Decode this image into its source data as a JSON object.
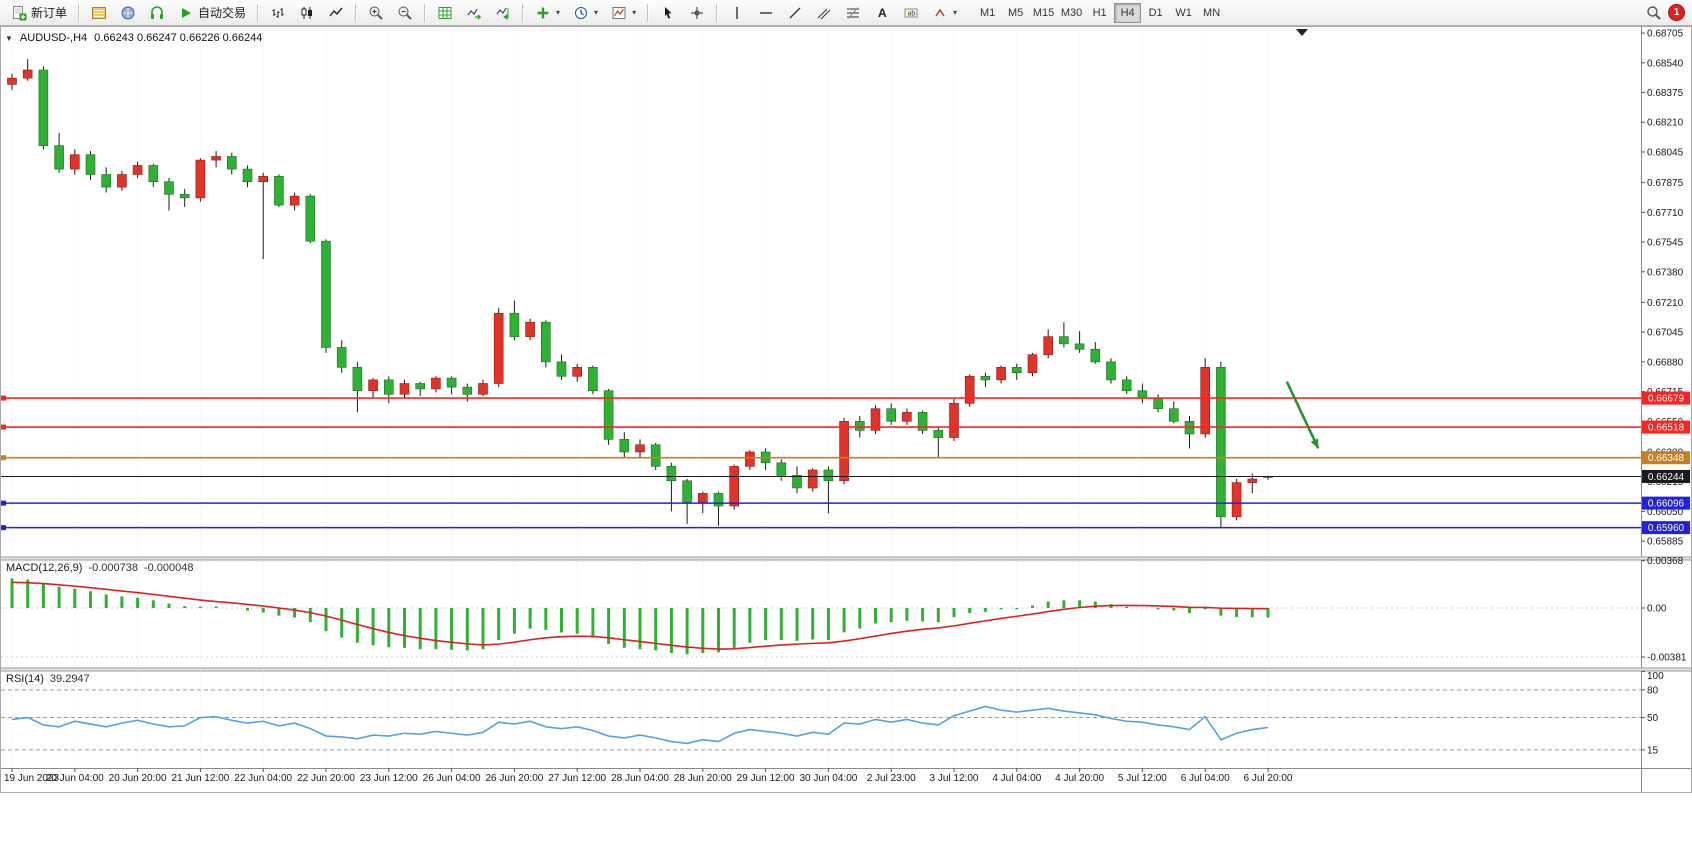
{
  "toolbar": {
    "new_order_label": "新订单",
    "autotrading_label": "自动交易",
    "timeframes": [
      "M1",
      "M5",
      "M15",
      "M30",
      "H1",
      "H4",
      "D1",
      "W1",
      "MN"
    ],
    "active_timeframe": "H4",
    "notification_count": "1"
  },
  "chart": {
    "symbol_period": "AUDUSD-,H4",
    "ohlc": "0.66243 0.66247 0.66226 0.66244"
  },
  "chart_data": {
    "type": "candlestick",
    "symbol": "AUDUSD-",
    "timeframe": "H4",
    "time_labels": [
      "19 Jun 2023",
      "20 Jun 04:00",
      "20 Jun 20:00",
      "21 Jun 12:00",
      "22 Jun 04:00",
      "22 Jun 20:00",
      "23 Jun 12:00",
      "26 Jun 04:00",
      "26 Jun 20:00",
      "27 Jun 12:00",
      "28 Jun 04:00",
      "28 Jun 20:00",
      "29 Jun 12:00",
      "30 Jun 04:00",
      "2 Jul 23:00",
      "3 Jul 12:00",
      "4 Jul 04:00",
      "4 Jul 20:00",
      "5 Jul 12:00",
      "6 Jul 04:00",
      "6 Jul 20:00"
    ],
    "candles_per_label": 4,
    "price_axis_ticks": [
      "0.68705",
      "0.68540",
      "0.68375",
      "0.68210",
      "0.68045",
      "0.67875",
      "0.67710",
      "0.67545",
      "0.67380",
      "0.67210",
      "0.67045",
      "0.66880",
      "0.66715",
      "0.66550",
      "0.66380",
      "0.66215",
      "0.66050",
      "0.65885"
    ],
    "candles": [
      [
        0.6842,
        0.6848,
        0.6839,
        0.68455
      ],
      [
        0.68455,
        0.6856,
        0.6844,
        0.685
      ],
      [
        0.685,
        0.6852,
        0.6806,
        0.6808
      ],
      [
        0.6808,
        0.6815,
        0.6793,
        0.6795
      ],
      [
        0.6795,
        0.6806,
        0.6792,
        0.6803
      ],
      [
        0.6803,
        0.6805,
        0.6789,
        0.6792
      ],
      [
        0.6792,
        0.6796,
        0.6782,
        0.6785
      ],
      [
        0.6785,
        0.6794,
        0.6783,
        0.6792
      ],
      [
        0.6792,
        0.6799,
        0.679,
        0.6797
      ],
      [
        0.6797,
        0.6798,
        0.6785,
        0.6788
      ],
      [
        0.6788,
        0.679,
        0.6772,
        0.6781
      ],
      [
        0.6781,
        0.6784,
        0.6774,
        0.6779
      ],
      [
        0.6779,
        0.6801,
        0.6777,
        0.68
      ],
      [
        0.68,
        0.6805,
        0.6796,
        0.6802
      ],
      [
        0.6802,
        0.6804,
        0.6792,
        0.6795
      ],
      [
        0.6795,
        0.6797,
        0.6785,
        0.6788
      ],
      [
        0.6788,
        0.6793,
        0.6745,
        0.6791
      ],
      [
        0.6791,
        0.6792,
        0.6774,
        0.6775
      ],
      [
        0.6775,
        0.6782,
        0.6772,
        0.678
      ],
      [
        0.678,
        0.6781,
        0.6754,
        0.6755
      ],
      [
        0.6755,
        0.6756,
        0.6693,
        0.6696
      ],
      [
        0.6696,
        0.67,
        0.6682,
        0.6685
      ],
      [
        0.6685,
        0.6688,
        0.666,
        0.6672
      ],
      [
        0.6672,
        0.6679,
        0.6668,
        0.6678
      ],
      [
        0.6678,
        0.668,
        0.6665,
        0.667
      ],
      [
        0.667,
        0.6678,
        0.6668,
        0.6676
      ],
      [
        0.6676,
        0.6677,
        0.6669,
        0.6673
      ],
      [
        0.6673,
        0.668,
        0.6671,
        0.6679
      ],
      [
        0.6679,
        0.668,
        0.667,
        0.6674
      ],
      [
        0.6674,
        0.6676,
        0.6666,
        0.667
      ],
      [
        0.667,
        0.6678,
        0.6669,
        0.6676
      ],
      [
        0.6676,
        0.6718,
        0.6674,
        0.6715
      ],
      [
        0.6715,
        0.6722,
        0.67,
        0.6702
      ],
      [
        0.6702,
        0.6712,
        0.67,
        0.671
      ],
      [
        0.671,
        0.6711,
        0.6685,
        0.6688
      ],
      [
        0.6688,
        0.6692,
        0.6678,
        0.668
      ],
      [
        0.668,
        0.6687,
        0.6677,
        0.6685
      ],
      [
        0.6685,
        0.6686,
        0.667,
        0.6672
      ],
      [
        0.6672,
        0.6673,
        0.6642,
        0.6645
      ],
      [
        0.6645,
        0.6649,
        0.6635,
        0.6638
      ],
      [
        0.6638,
        0.6645,
        0.6635,
        0.6642
      ],
      [
        0.6642,
        0.6643,
        0.6628,
        0.663
      ],
      [
        0.663,
        0.6632,
        0.6605,
        0.6622
      ],
      [
        0.6622,
        0.6623,
        0.6598,
        0.661
      ],
      [
        0.661,
        0.6616,
        0.6604,
        0.6615
      ],
      [
        0.6615,
        0.6616,
        0.6597,
        0.6608
      ],
      [
        0.6608,
        0.6631,
        0.6606,
        0.663
      ],
      [
        0.663,
        0.6639,
        0.6628,
        0.6638
      ],
      [
        0.6638,
        0.664,
        0.6628,
        0.6632
      ],
      [
        0.6632,
        0.6634,
        0.6622,
        0.6625
      ],
      [
        0.6625,
        0.663,
        0.6615,
        0.6618
      ],
      [
        0.6618,
        0.6629,
        0.6616,
        0.6628
      ],
      [
        0.6628,
        0.663,
        0.6604,
        0.6622
      ],
      [
        0.6622,
        0.6657,
        0.662,
        0.6655
      ],
      [
        0.6655,
        0.6658,
        0.6646,
        0.665
      ],
      [
        0.665,
        0.6664,
        0.6648,
        0.6662
      ],
      [
        0.6662,
        0.6665,
        0.6653,
        0.6655
      ],
      [
        0.6655,
        0.6662,
        0.6653,
        0.666
      ],
      [
        0.666,
        0.6661,
        0.6648,
        0.665
      ],
      [
        0.665,
        0.6652,
        0.6635,
        0.6646
      ],
      [
        0.6646,
        0.6668,
        0.6644,
        0.6665
      ],
      [
        0.6665,
        0.6681,
        0.6663,
        0.668
      ],
      [
        0.668,
        0.6682,
        0.6674,
        0.6678
      ],
      [
        0.6678,
        0.6686,
        0.6676,
        0.6685
      ],
      [
        0.6685,
        0.6687,
        0.6678,
        0.6682
      ],
      [
        0.6682,
        0.6693,
        0.668,
        0.6692
      ],
      [
        0.6692,
        0.6706,
        0.669,
        0.6702
      ],
      [
        0.6702,
        0.671,
        0.6696,
        0.6698
      ],
      [
        0.6698,
        0.6705,
        0.6693,
        0.6695
      ],
      [
        0.6695,
        0.6699,
        0.6687,
        0.6688
      ],
      [
        0.6688,
        0.669,
        0.6676,
        0.6678
      ],
      [
        0.6678,
        0.668,
        0.667,
        0.6672
      ],
      [
        0.6672,
        0.6676,
        0.6665,
        0.6668
      ],
      [
        0.6668,
        0.667,
        0.666,
        0.6662
      ],
      [
        0.6662,
        0.6666,
        0.6654,
        0.6655
      ],
      [
        0.6655,
        0.6658,
        0.664,
        0.6648
      ],
      [
        0.6648,
        0.669,
        0.6646,
        0.6685
      ],
      [
        0.6685,
        0.6688,
        0.6596,
        0.6602
      ],
      [
        0.6602,
        0.6623,
        0.66,
        0.6621
      ],
      [
        0.6621,
        0.6626,
        0.6615,
        0.6623
      ],
      [
        0.66243,
        0.66247,
        0.66226,
        0.66244
      ]
    ],
    "horizontal_lines": [
      {
        "price": 0.66679,
        "label": "0.66679",
        "color": "#ff2222",
        "type": "resistance"
      },
      {
        "price": 0.66518,
        "label": "0.66518",
        "color": "#ff2222",
        "type": "resistance"
      },
      {
        "price": 0.66348,
        "label": "0.66348",
        "color": "#c8801e",
        "type": "pivot"
      },
      {
        "price": 0.66096,
        "label": "0.66096",
        "color": "#2222dd",
        "type": "support"
      },
      {
        "price": 0.6596,
        "label": "0.65960",
        "color": "#2222dd",
        "type": "support"
      }
    ],
    "current_price": {
      "price": 0.66244,
      "label": "0.66244",
      "color": "#1a1a1a"
    },
    "arrow_annotation": {
      "color": "#2e8f2e",
      "from": {
        "candle": 81.2,
        "price": 0.6677
      },
      "to": {
        "candle": 83.2,
        "price": 0.664
      }
    },
    "macd": {
      "name": "MACD(12,26,9)",
      "value": "-0.000738",
      "signal_value": "-0.000048",
      "axis_labels": [
        {
          "text": "0.00368",
          "value": 0.00368
        },
        {
          "text": "0.00",
          "value": 0
        },
        {
          "text": "-0.00381",
          "value": -0.00381
        }
      ],
      "histogram": [
        0.0023,
        0.0022,
        0.00195,
        0.00165,
        0.0015,
        0.0013,
        0.00105,
        0.0009,
        0.0008,
        0.0006,
        0.00035,
        0.00015,
        0.0001,
        0.00012,
        0.0,
        -0.0002,
        -0.00035,
        -0.0006,
        -0.00075,
        -0.0011,
        -0.0018,
        -0.0023,
        -0.0027,
        -0.0029,
        -0.00305,
        -0.0031,
        -0.0032,
        -0.0032,
        -0.00325,
        -0.0033,
        -0.0032,
        -0.0025,
        -0.002,
        -0.0016,
        -0.0017,
        -0.0019,
        -0.002,
        -0.0023,
        -0.0028,
        -0.0031,
        -0.0032,
        -0.0033,
        -0.0035,
        -0.0036,
        -0.0035,
        -0.00345,
        -0.0031,
        -0.0027,
        -0.0025,
        -0.0025,
        -0.00255,
        -0.00245,
        -0.0025,
        -0.0019,
        -0.0016,
        -0.0012,
        -0.0011,
        -0.001,
        -0.00105,
        -0.0011,
        -0.0007,
        -0.0004,
        -0.0003,
        -0.0001,
        -0.0001,
        0.0002,
        0.0005,
        0.0006,
        0.0006,
        0.0005,
        0.0003,
        0.0001,
        0.0,
        -0.0001,
        -0.0002,
        -0.0004,
        -0.0001,
        -0.0006,
        -0.0007,
        -0.00072,
        -0.00074
      ],
      "signal": [
        0.002,
        0.00197,
        0.0019,
        0.0018,
        0.0017,
        0.00158,
        0.00145,
        0.00132,
        0.0012,
        0.00106,
        0.00091,
        0.00076,
        0.00062,
        0.0005,
        0.0004,
        0.00028,
        0.00015,
        0.0,
        -0.00016,
        -0.00036,
        -0.00062,
        -0.00094,
        -0.00128,
        -0.0016,
        -0.0019,
        -0.00215,
        -0.00236,
        -0.00253,
        -0.00267,
        -0.00279,
        -0.00287,
        -0.00281,
        -0.00266,
        -0.00247,
        -0.00232,
        -0.00223,
        -0.00219,
        -0.00221,
        -0.00232,
        -0.00247,
        -0.00261,
        -0.00275,
        -0.0029,
        -0.00304,
        -0.00313,
        -0.00319,
        -0.00317,
        -0.00308,
        -0.00297,
        -0.00288,
        -0.00281,
        -0.00275,
        -0.00271,
        -0.00257,
        -0.00239,
        -0.00218,
        -0.00198,
        -0.0018,
        -0.00166,
        -0.00155,
        -0.00139,
        -0.00119,
        -0.001,
        -0.00081,
        -0.00064,
        -0.00047,
        -0.00028,
        -0.0001,
        4e-05,
        0.00014,
        0.00019,
        0.0002,
        0.00019,
        0.00016,
        0.00012,
        5e-05,
        4e-05,
        -1e-05,
        -3e-05,
        -4e-05,
        -5e-05
      ]
    },
    "rsi": {
      "name": "RSI(14)",
      "value": "39.2947",
      "levels": [
        80,
        50,
        15
      ],
      "axis_labels": [
        {
          "text": "100",
          "value": 100
        },
        {
          "text": "80",
          "value": 80
        },
        {
          "text": "50",
          "value": 50
        },
        {
          "text": "15",
          "value": 15
        }
      ],
      "values": [
        48,
        50,
        42,
        40,
        46,
        43,
        40,
        44,
        47,
        43,
        40,
        41,
        50,
        51,
        47,
        44,
        46,
        41,
        44,
        38,
        30,
        29,
        27,
        31,
        30,
        33,
        32,
        35,
        33,
        31,
        34,
        45,
        43,
        46,
        40,
        38,
        40,
        36,
        30,
        28,
        31,
        28,
        24,
        22,
        26,
        24,
        33,
        37,
        35,
        33,
        30,
        34,
        32,
        44,
        43,
        48,
        45,
        48,
        44,
        42,
        52,
        57,
        62,
        58,
        56,
        58,
        60,
        57,
        55,
        53,
        49,
        46,
        45,
        42,
        40,
        37,
        51,
        26,
        33,
        37,
        39.29
      ]
    },
    "colors": {
      "up": "#e03428",
      "down": "#2fb135",
      "wick": "#1a1a1a",
      "macd_histogram": "#2fb135",
      "macd_signal": "#e02020",
      "rsi_line": "#55a0e6",
      "grid": "#e4e4e4"
    }
  }
}
